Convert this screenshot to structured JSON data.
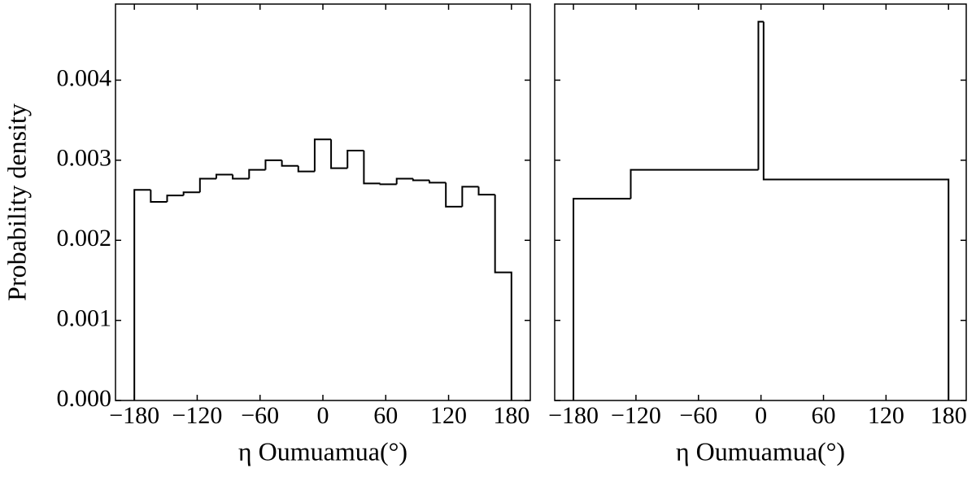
{
  "chart_data": [
    {
      "type": "histogram",
      "ylabel": "Probability density",
      "xlabel": "η Oumuamua(°)",
      "bins": [
        -180,
        -164.35,
        -148.7,
        -133.04,
        -117.39,
        -101.74,
        -86.09,
        -70.43,
        -54.78,
        -39.13,
        -23.48,
        -7.83,
        7.83,
        23.48,
        39.13,
        54.78,
        70.43,
        86.09,
        101.74,
        117.39,
        133.04,
        148.7,
        164.35,
        180
      ],
      "values": [
        0.00263,
        0.00248,
        0.00256,
        0.0026,
        0.00277,
        0.00282,
        0.00277,
        0.00288,
        0.003,
        0.00293,
        0.00286,
        0.00326,
        0.0029,
        0.00312,
        0.00271,
        0.0027,
        0.00277,
        0.00275,
        0.00272,
        0.00242,
        0.00267,
        0.00257,
        0.0016
      ],
      "color": "#000000",
      "xlim": [
        -198,
        198
      ],
      "ylim": [
        0,
        0.00495
      ],
      "xticks": [
        {
          "value": -180,
          "label": "−180"
        },
        {
          "value": -120,
          "label": "−120"
        },
        {
          "value": -60,
          "label": "−60"
        },
        0,
        60,
        120,
        180
      ],
      "yticks": [
        {
          "value": 0,
          "label": "0.000"
        },
        0.001,
        0.002,
        0.003,
        0.004
      ],
      "show_ytick_labels": true
    },
    {
      "type": "histogram",
      "xlabel": "η Oumuamua(°)",
      "bins": [
        -180,
        -125,
        -2.5,
        2.5,
        180
      ],
      "values": [
        0.00252,
        0.00288,
        0.00473,
        0.00276
      ],
      "color": "#000000",
      "xlim": [
        -198,
        197
      ],
      "ylim": [
        0,
        0.00495
      ],
      "xticks": [
        {
          "value": -180,
          "label": "−180"
        },
        {
          "value": -120,
          "label": "−120"
        },
        {
          "value": -60,
          "label": "−60"
        },
        0,
        60,
        120,
        180
      ],
      "yticks": [
        0,
        0.001,
        0.002,
        0.003,
        0.004
      ],
      "show_ytick_labels": false
    }
  ]
}
